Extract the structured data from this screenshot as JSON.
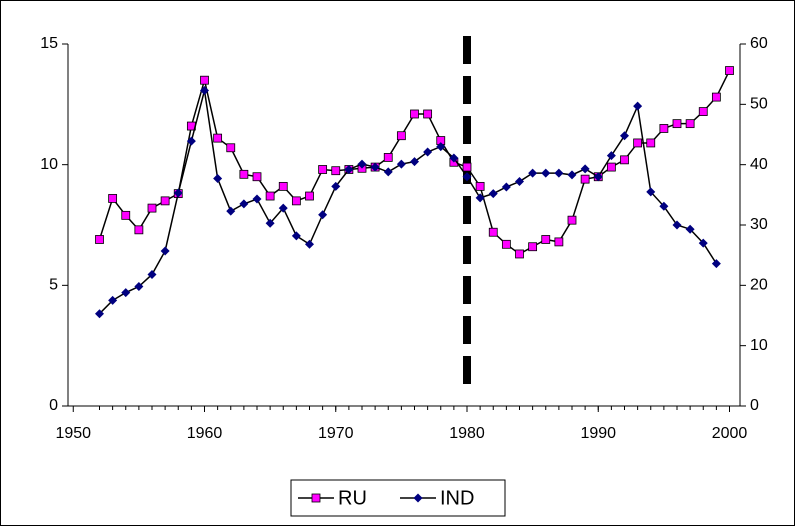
{
  "chart_data": {
    "type": "line",
    "x": [
      1952,
      1953,
      1954,
      1955,
      1956,
      1957,
      1958,
      1959,
      1960,
      1961,
      1962,
      1963,
      1964,
      1965,
      1966,
      1967,
      1968,
      1969,
      1970,
      1971,
      1972,
      1973,
      1974,
      1975,
      1976,
      1977,
      1978,
      1979,
      1980,
      1981,
      1982,
      1983,
      1984,
      1985,
      1986,
      1987,
      1988,
      1989,
      1990,
      1991,
      1992,
      1993,
      1994,
      1995,
      1996,
      1997,
      1998,
      1999,
      2000
    ],
    "series": [
      {
        "name": "RU",
        "color": "#ff00ff",
        "marker": "square",
        "values": [
          6.9,
          8.6,
          7.9,
          7.3,
          8.2,
          8.5,
          8.8,
          11.6,
          13.5,
          11.1,
          10.7,
          9.6,
          9.5,
          8.7,
          9.1,
          8.5,
          8.7,
          9.8,
          9.75,
          9.8,
          9.85,
          9.9,
          10.3,
          11.2,
          12.1,
          12.1,
          11.0,
          10.1,
          9.9,
          9.1,
          7.2,
          6.7,
          6.3,
          6.6,
          6.9,
          6.8,
          7.7,
          9.4,
          9.5,
          9.9,
          10.2,
          10.9,
          10.9,
          11.5,
          11.7,
          11.7,
          12.2,
          12.8,
          13.9
        ]
      },
      {
        "name": "IND",
        "color": "#000080",
        "marker": "diamond",
        "axis": "y2",
        "values": [
          15.3,
          17.5,
          18.8,
          19.8,
          21.8,
          25.7,
          35.3,
          43.9,
          52.3,
          37.7,
          32.3,
          33.5,
          34.3,
          30.3,
          32.8,
          28.2,
          26.8,
          31.7,
          36.4,
          39.2,
          40.1,
          39.6,
          38.8,
          40.1,
          40.5,
          42.1,
          43.0,
          41.1,
          38.0,
          34.5,
          35.2,
          36.3,
          37.2,
          38.6,
          38.6,
          38.6,
          38.3,
          39.3,
          38.0,
          41.5,
          44.8,
          49.7,
          35.5,
          33.1,
          30.0,
          29.3,
          27.0,
          23.6,
          null
        ]
      }
    ],
    "xlim": [
      1949.6,
      2000.8
    ],
    "xticks": [
      1950,
      1960,
      1970,
      1980,
      1990,
      2000
    ],
    "ylim": [
      0,
      15
    ],
    "yticks": [
      0,
      5,
      10,
      15
    ],
    "y2lim": [
      0,
      60
    ],
    "y2ticks": [
      0,
      10,
      20,
      30,
      40,
      50,
      60
    ],
    "vline_x": 1980,
    "legend": "bottom"
  }
}
